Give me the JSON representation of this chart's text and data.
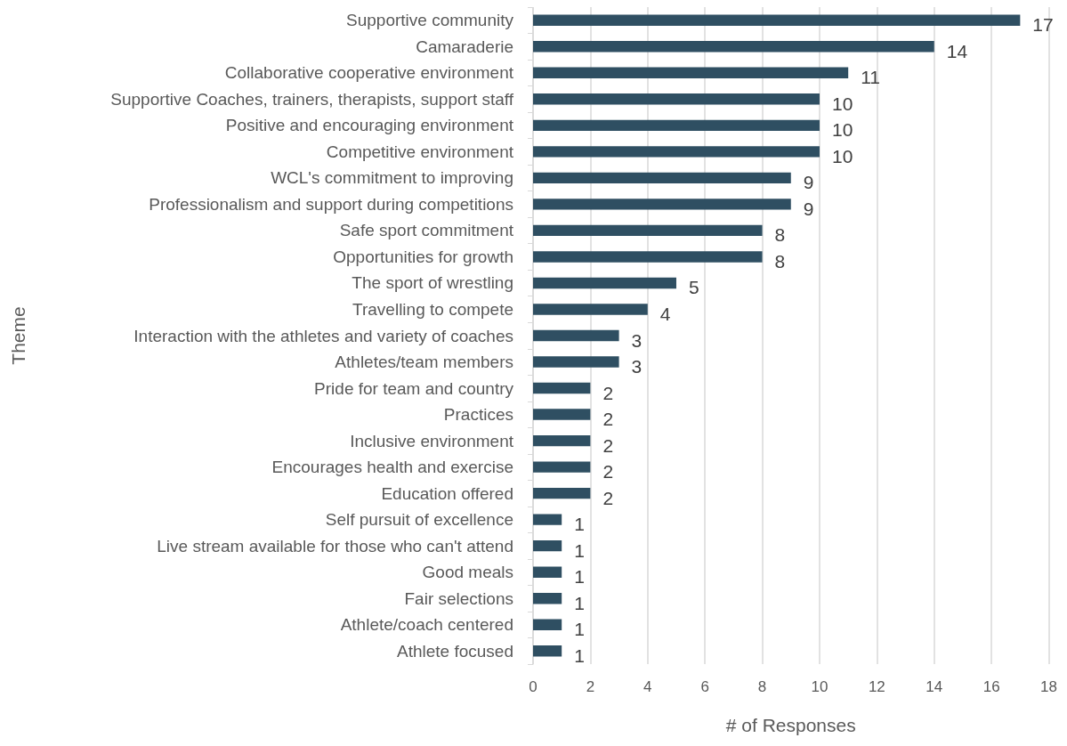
{
  "chart_data": {
    "type": "bar",
    "orientation": "horizontal",
    "xlabel": "# of Responses",
    "ylabel": "Theme",
    "categories": [
      "Supportive community",
      "Camaraderie",
      "Collaborative cooperative environment",
      "Supportive Coaches, trainers, therapists, support staff",
      "Positive and encouraging environment",
      "Competitive environment",
      "WCL's commitment to improving",
      "Professionalism and support during competitions",
      "Safe sport commitment",
      "Opportunities for growth",
      "The sport of wrestling",
      "Travelling to compete",
      "Interaction with the athletes and variety of coaches",
      "Athletes/team members",
      "Pride for team and country",
      "Practices",
      "Inclusive environment",
      "Encourages health and exercise",
      "Education offered",
      "Self pursuit of excellence",
      "Live stream available for those who can't attend",
      "Good meals",
      "Fair selections",
      "Athlete/coach centered",
      "Athlete focused"
    ],
    "values": [
      17,
      14,
      11,
      10,
      10,
      10,
      9,
      9,
      8,
      8,
      5,
      4,
      3,
      3,
      2,
      2,
      2,
      2,
      2,
      1,
      1,
      1,
      1,
      1,
      1
    ],
    "color": "#2f4f62",
    "xlim": [
      0,
      18
    ],
    "xticks": [
      0,
      2,
      4,
      6,
      8,
      10,
      12,
      14,
      16,
      18
    ],
    "grid": "x",
    "data_labels": true
  }
}
